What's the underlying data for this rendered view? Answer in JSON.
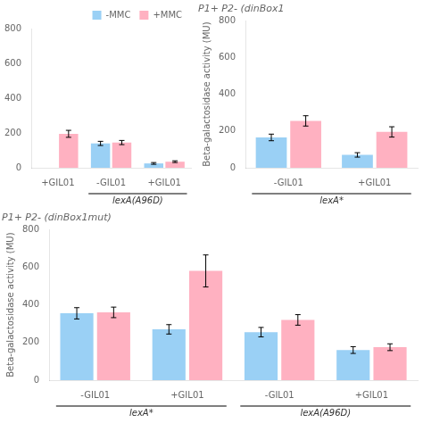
{
  "chart_data": [
    {
      "type": "bar",
      "categories": [
        "+GIL01",
        "-GIL01",
        "+GIL01"
      ],
      "series": [
        {
          "name": "-MMC",
          "values": [
            0,
            140,
            25
          ],
          "errors": [
            0,
            12,
            5
          ]
        },
        {
          "name": "+MMC",
          "values": [
            195,
            145,
            35
          ],
          "errors": [
            20,
            12,
            5
          ]
        }
      ],
      "ylim": [
        0,
        800
      ],
      "yticks": [
        0,
        200,
        400,
        600,
        800
      ],
      "grid": false,
      "legend": "upper right",
      "annotations": [
        {
          "text": "lexA(A96D)",
          "categories": [
            1,
            2
          ]
        }
      ]
    },
    {
      "type": "bar",
      "title": "P1+ P2- (dinBox1mut)",
      "y_label": "Beta-galactosidase activity (MU)",
      "categories": [
        "-GIL01",
        "+GIL01",
        "-GIL01",
        "+GIL01"
      ],
      "series": [
        {
          "name": "-MMC",
          "values": [
            355,
            270,
            255,
            160
          ],
          "errors": [
            30,
            25,
            25,
            18
          ]
        },
        {
          "name": "+MMC",
          "values": [
            360,
            580,
            320,
            175
          ],
          "errors": [
            28,
            85,
            28,
            18
          ]
        }
      ],
      "ylim": [
        0,
        800
      ],
      "yticks": [
        0,
        200,
        400,
        600,
        800
      ],
      "grid": false,
      "annotations": [
        {
          "text": "lexA*",
          "categories": [
            0,
            1
          ]
        },
        {
          "text": "lexA(A96D)",
          "categories": [
            2,
            3
          ]
        }
      ]
    },
    {
      "type": "bar",
      "title": "P1+ P2- (dinBox1",
      "y_label": "Beta-galactosidase activity (MU)",
      "categories": [
        "-GIL01",
        "+GIL01"
      ],
      "series": [
        {
          "name": "-MMC",
          "values": [
            165,
            70
          ],
          "errors": [
            18,
            12
          ]
        },
        {
          "name": "+MMC",
          "values": [
            255,
            195
          ],
          "errors": [
            28,
            28
          ]
        }
      ],
      "ylim": [
        0,
        800
      ],
      "yticks": [
        0,
        200,
        400,
        600,
        800
      ],
      "grid": false,
      "annotations": [
        {
          "text": "lexA*",
          "categories": [
            0,
            1
          ]
        }
      ]
    }
  ]
}
